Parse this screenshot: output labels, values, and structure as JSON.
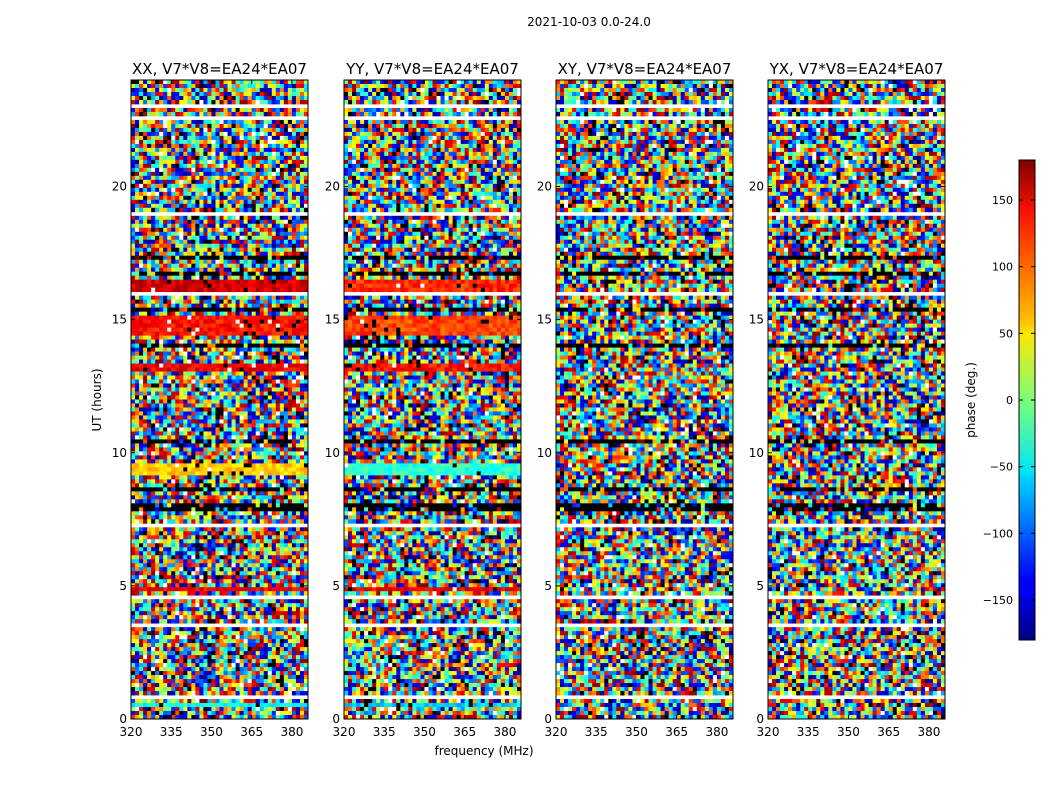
{
  "figure": {
    "suptitle": "2021-10-03 0.0-24.0",
    "xlabel": "frequency (MHz)",
    "ylabel": "UT (hours)",
    "colorbar_label": "phase (deg.)"
  },
  "chart_data": {
    "type": "heatmap",
    "colormap": "jet",
    "mask_color": "#ffffff",
    "xlim": [
      320,
      386
    ],
    "ylim": [
      0,
      24
    ],
    "xticks": [
      320,
      335,
      350,
      365,
      380
    ],
    "yticks": [
      0,
      5,
      10,
      15,
      20
    ],
    "colorbar": {
      "vmin": -180,
      "vmax": 180,
      "ticks": [
        -150,
        -100,
        -50,
        0,
        50,
        100,
        150
      ]
    },
    "panels": [
      {
        "title": "XX, V7*V8=EA24*EA07",
        "pol": "XX"
      },
      {
        "title": "YY, V7*V8=EA24*EA07",
        "pol": "YY"
      },
      {
        "title": "XY, V7*V8=EA24*EA07",
        "pol": "XY"
      },
      {
        "title": "YX, V7*V8=EA24*EA07",
        "pol": "YX"
      }
    ],
    "coherent_bands": {
      "XX": [
        {
          "ut": [
            16.1,
            16.45
          ],
          "phase_deg": 150
        },
        {
          "ut": [
            14.4,
            15.2
          ],
          "phase_deg": 130
        },
        {
          "ut": [
            13.0,
            13.3
          ],
          "phase_deg": 140
        },
        {
          "ut": [
            9.1,
            9.55
          ],
          "phase_deg": 60
        },
        {
          "ut": [
            4.75,
            4.9
          ],
          "phase_deg": 140
        },
        {
          "ut": [
            0.45,
            0.6
          ],
          "phase_deg": -40
        }
      ],
      "YY": [
        {
          "ut": [
            16.1,
            16.45
          ],
          "phase_deg": 120
        },
        {
          "ut": [
            14.4,
            15.2
          ],
          "phase_deg": 110
        },
        {
          "ut": [
            13.0,
            13.3
          ],
          "phase_deg": 130
        },
        {
          "ut": [
            9.1,
            9.55
          ],
          "phase_deg": -30
        },
        {
          "ut": [
            4.75,
            4.9
          ],
          "phase_deg": 140
        },
        {
          "ut": [
            0.45,
            0.6
          ],
          "phase_deg": -60
        }
      ],
      "XY": [],
      "YX": []
    },
    "flagged_ut": [
      [
        18.9,
        19.0
      ],
      [
        18.7,
        18.8
      ],
      [
        22.5,
        22.6
      ],
      [
        23.0,
        23.05
      ],
      [
        15.9,
        16.0
      ],
      [
        9.0,
        9.05
      ],
      [
        7.25,
        7.3
      ],
      [
        4.55,
        4.6
      ],
      [
        3.5,
        3.55
      ],
      [
        0.8,
        0.85
      ],
      [
        0.3,
        0.35
      ]
    ],
    "dark_ut": [
      [
        7.75,
        8.15
      ],
      [
        15.35,
        15.45
      ],
      [
        17.8,
        17.9
      ],
      [
        12.0,
        12.05
      ],
      [
        10.4,
        10.45
      ],
      [
        8.6,
        8.65
      ],
      [
        16.7,
        16.75
      ],
      [
        17.3,
        17.35
      ],
      [
        14.0,
        14.05
      ],
      [
        11.2,
        11.25
      ]
    ]
  }
}
